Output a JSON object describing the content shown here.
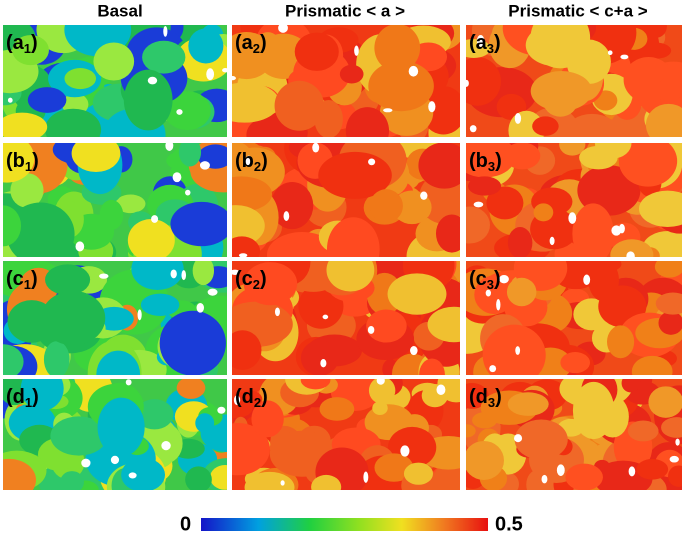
{
  "columns": [
    "Basal",
    "Prismatic < a >",
    "Prismatic < c+a >"
  ],
  "panels": [
    [
      {
        "prefix": "(a",
        "subscript": "1",
        "suffix": ")"
      },
      {
        "prefix": "(a",
        "subscript": "2",
        "suffix": ")"
      },
      {
        "prefix": "(a",
        "subscript": "3",
        "suffix": ")"
      }
    ],
    [
      {
        "prefix": "(b",
        "subscript": "1",
        "suffix": ")"
      },
      {
        "prefix": "(b",
        "subscript": "2",
        "suffix": ")"
      },
      {
        "prefix": "(b",
        "subscript": "3",
        "suffix": ")"
      }
    ],
    [
      {
        "prefix": "(c",
        "subscript": "1",
        "suffix": ")"
      },
      {
        "prefix": "(c",
        "subscript": "2",
        "suffix": ")"
      },
      {
        "prefix": "(c",
        "subscript": "3",
        "suffix": ")"
      }
    ],
    [
      {
        "prefix": "(d",
        "subscript": "1",
        "suffix": ")"
      },
      {
        "prefix": "(d",
        "subscript": "2",
        "suffix": ")"
      },
      {
        "prefix": "(d",
        "subscript": "3",
        "suffix": ")"
      }
    ]
  ],
  "colorbar": {
    "min": 0,
    "max": 0.5
  }
}
